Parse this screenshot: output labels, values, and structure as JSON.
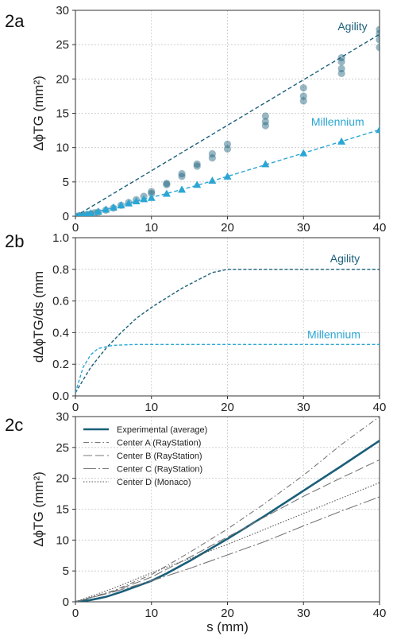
{
  "colors": {
    "agility": "#1a5f7a",
    "millennium": "#2ba6d4",
    "experimental": "#1a5f7a",
    "model": "#777777",
    "grid": "#c8c8c8"
  },
  "chart_data": [
    {
      "panel_label": "2a",
      "type": "scatter",
      "ylabel": "ΔϕTG (mm²)",
      "xlabel": "",
      "xlim": [
        0,
        40
      ],
      "ylim": [
        0,
        30
      ],
      "x_ticks": [
        0,
        10,
        20,
        30,
        40
      ],
      "y_ticks": [
        0,
        5,
        10,
        15,
        20,
        25,
        30
      ],
      "grid": true,
      "series": [
        {
          "name": "Agility",
          "marker": "circle",
          "points": [
            [
              0,
              0
            ],
            [
              0.5,
              0.08
            ],
            [
              1,
              0.15
            ],
            [
              1.5,
              0.25
            ],
            [
              2,
              0.35
            ],
            [
              2.5,
              0.5
            ],
            [
              3,
              0.6
            ],
            [
              4,
              0.9
            ],
            [
              5,
              1.2
            ],
            [
              6,
              1.6
            ],
            [
              7,
              2.0
            ],
            [
              8,
              2.4
            ],
            [
              9,
              2.9
            ],
            [
              10,
              3.3
            ],
            [
              10,
              3.6
            ],
            [
              12,
              4.6
            ],
            [
              12,
              4.8
            ],
            [
              14,
              5.8
            ],
            [
              14,
              6.2
            ],
            [
              16,
              7.3
            ],
            [
              16,
              7.6
            ],
            [
              18,
              8.5
            ],
            [
              18,
              9.1
            ],
            [
              20,
              9.8
            ],
            [
              20,
              10.5
            ],
            [
              25,
              13.2
            ],
            [
              25,
              13.8
            ],
            [
              25,
              14.6
            ],
            [
              30,
              16.8
            ],
            [
              30,
              17.5
            ],
            [
              30,
              18.7
            ],
            [
              35,
              20.8
            ],
            [
              35,
              21.5
            ],
            [
              35,
              22.5
            ],
            [
              35,
              23.1
            ],
            [
              40,
              24.6
            ],
            [
              40,
              25.7
            ],
            [
              40,
              26.6
            ],
            [
              40,
              27.2
            ]
          ],
          "fit": [
            [
              0,
              0
            ],
            [
              40,
              26.5
            ]
          ]
        },
        {
          "name": "Millennium",
          "marker": "triangle",
          "points": [
            [
              0,
              0
            ],
            [
              0.5,
              0.1
            ],
            [
              1,
              0.2
            ],
            [
              1.5,
              0.3
            ],
            [
              2,
              0.45
            ],
            [
              3,
              0.7
            ],
            [
              4,
              1.0
            ],
            [
              5,
              1.3
            ],
            [
              6,
              1.6
            ],
            [
              7,
              1.9
            ],
            [
              8,
              2.2
            ],
            [
              9,
              2.5
            ],
            [
              10,
              2.7
            ],
            [
              12,
              3.3
            ],
            [
              14,
              3.9
            ],
            [
              16,
              4.6
            ],
            [
              18,
              5.2
            ],
            [
              20,
              5.8
            ],
            [
              25,
              7.6
            ],
            [
              30,
              9.2
            ],
            [
              35,
              10.9
            ],
            [
              40,
              12.6
            ]
          ],
          "fit": [
            [
              0,
              0
            ],
            [
              2,
              0.45
            ],
            [
              4,
              1.0
            ],
            [
              8,
              2.2
            ],
            [
              12,
              3.3
            ],
            [
              16,
              4.5
            ],
            [
              20,
              5.8
            ],
            [
              30,
              9.2
            ],
            [
              40,
              12.6
            ]
          ]
        }
      ],
      "annotations": [
        {
          "text": "Agility",
          "x": 34.5,
          "y": 27.1,
          "series": "Agility"
        },
        {
          "text": "Millennium",
          "x": 31,
          "y": 13.2,
          "series": "Millennium"
        }
      ]
    },
    {
      "panel_label": "2b",
      "type": "line",
      "ylabel": "dΔϕTG/ds (mm",
      "xlabel": "",
      "xlim": [
        0,
        40
      ],
      "ylim": [
        0,
        1.0
      ],
      "x_ticks": [
        0,
        10,
        20,
        30,
        40
      ],
      "y_ticks": [
        0.0,
        0.2,
        0.4,
        0.6,
        0.8,
        1.0
      ],
      "grid": true,
      "series": [
        {
          "name": "Agility",
          "style": "dashed",
          "points": [
            [
              0,
              0.02
            ],
            [
              1,
              0.1
            ],
            [
              2,
              0.18
            ],
            [
              4,
              0.3
            ],
            [
              6,
              0.4
            ],
            [
              8,
              0.49
            ],
            [
              10,
              0.56
            ],
            [
              12,
              0.62
            ],
            [
              14,
              0.68
            ],
            [
              16,
              0.73
            ],
            [
              18,
              0.78
            ],
            [
              20,
              0.8
            ],
            [
              30,
              0.8
            ],
            [
              40,
              0.8
            ]
          ]
        },
        {
          "name": "Millennium",
          "style": "dashed",
          "points": [
            [
              0,
              0.02
            ],
            [
              0.5,
              0.1
            ],
            [
              1,
              0.18
            ],
            [
              2,
              0.26
            ],
            [
              3,
              0.3
            ],
            [
              4,
              0.31
            ],
            [
              5,
              0.32
            ],
            [
              8,
              0.325
            ],
            [
              20,
              0.325
            ],
            [
              40,
              0.325
            ]
          ]
        }
      ],
      "annotations": [
        {
          "text": "Agility",
          "x": 33.5,
          "y": 0.845,
          "series": "Agility"
        },
        {
          "text": "Millennium",
          "x": 30.5,
          "y": 0.365,
          "series": "Millennium"
        }
      ]
    },
    {
      "panel_label": "2c",
      "type": "line",
      "ylabel": "ΔϕTG (mm²)",
      "xlabel": "s (mm)",
      "xlim": [
        0,
        40
      ],
      "ylim": [
        0,
        30
      ],
      "x_ticks": [
        0,
        10,
        20,
        30,
        40
      ],
      "y_ticks": [
        0,
        5,
        10,
        15,
        20,
        25,
        30
      ],
      "grid": true,
      "legend_position": "top-left",
      "series": [
        {
          "name": "Experimental (average)",
          "style": "solid-thick",
          "points": [
            [
              0,
              0
            ],
            [
              2,
              0.3
            ],
            [
              4,
              0.8
            ],
            [
              6,
              1.6
            ],
            [
              8,
              2.5
            ],
            [
              10,
              3.4
            ],
            [
              12,
              4.6
            ],
            [
              15,
              6.6
            ],
            [
              20,
              10.2
            ],
            [
              25,
              14.0
            ],
            [
              30,
              18.0
            ],
            [
              35,
              22.0
            ],
            [
              40,
              26.1
            ]
          ]
        },
        {
          "name": "Center A (RayStation)",
          "style": "dashdot",
          "points": [
            [
              0,
              0
            ],
            [
              5,
              1.8
            ],
            [
              10,
              4.4
            ],
            [
              15,
              8.0
            ],
            [
              20,
              11.8
            ],
            [
              25,
              16.0
            ],
            [
              30,
              20.5
            ],
            [
              35,
              25.5
            ],
            [
              40,
              30.0
            ]
          ]
        },
        {
          "name": "Center B (RayStation)",
          "style": "longdash",
          "points": [
            [
              0,
              0
            ],
            [
              5,
              1.7
            ],
            [
              10,
              4.0
            ],
            [
              15,
              7.2
            ],
            [
              20,
              10.5
            ],
            [
              25,
              13.8
            ],
            [
              30,
              17.1
            ],
            [
              35,
              20.1
            ],
            [
              40,
              23.0
            ]
          ]
        },
        {
          "name": "Center C (RayStation)",
          "style": "dash",
          "points": [
            [
              0,
              0
            ],
            [
              5,
              1.6
            ],
            [
              10,
              3.4
            ],
            [
              15,
              5.4
            ],
            [
              20,
              7.6
            ],
            [
              25,
              9.8
            ],
            [
              30,
              12.3
            ],
            [
              35,
              14.7
            ],
            [
              40,
              17.0
            ]
          ]
        },
        {
          "name": "Center D (Monaco)",
          "style": "dotted",
          "points": [
            [
              0,
              0
            ],
            [
              5,
              2.2
            ],
            [
              10,
              4.7
            ],
            [
              15,
              7.0
            ],
            [
              20,
              9.3
            ],
            [
              25,
              11.8
            ],
            [
              30,
              14.3
            ],
            [
              35,
              16.8
            ],
            [
              40,
              19.3
            ]
          ]
        }
      ]
    }
  ]
}
